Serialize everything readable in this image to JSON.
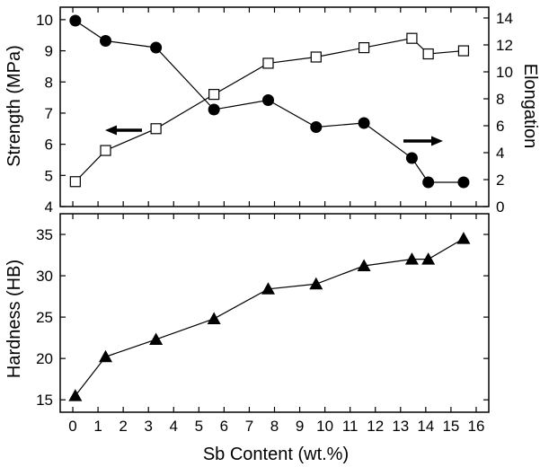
{
  "chart_data": [
    {
      "type": "line",
      "panel": "top",
      "x": [
        0.1,
        1.3,
        3.3,
        5.6,
        7.75,
        9.65,
        11.55,
        13.45,
        14.1,
        15.5
      ],
      "xlim": [
        -0.5,
        16.5
      ],
      "xticks": [
        0,
        1,
        2,
        3,
        4,
        5,
        6,
        7,
        8,
        9,
        10,
        11,
        12,
        13,
        14,
        15,
        16
      ],
      "ylabel": "Strength (MPa)",
      "ylim": [
        4,
        10.4
      ],
      "yticks": [
        4,
        5,
        6,
        7,
        8,
        9,
        10
      ],
      "y2label": "Elongation",
      "y2lim": [
        0,
        14.8
      ],
      "y2ticks": [
        0,
        2,
        4,
        6,
        8,
        10,
        12,
        14
      ],
      "series": [
        {
          "axis": "left",
          "marker": "open-square",
          "values": [
            4.8,
            5.8,
            6.5,
            7.6,
            8.6,
            8.8,
            9.1,
            9.4,
            8.9,
            9.0
          ]
        },
        {
          "axis": "right",
          "marker": "filled-circle",
          "values": [
            13.8,
            12.3,
            11.8,
            7.2,
            7.9,
            5.9,
            6.2,
            3.6,
            1.8,
            1.8
          ]
        }
      ],
      "annotations": [
        {
          "type": "arrow",
          "direction": "left",
          "refers_to": "left axis"
        },
        {
          "type": "arrow",
          "direction": "right",
          "refers_to": "right axis"
        }
      ],
      "grid": false
    },
    {
      "type": "line",
      "panel": "bottom",
      "x": [
        0.1,
        1.3,
        3.3,
        5.6,
        7.75,
        9.65,
        11.55,
        13.45,
        14.1,
        15.5
      ],
      "xlabel": "Sb Content (wt.%)",
      "xlim": [
        -0.5,
        16.5
      ],
      "xticks": [
        0,
        1,
        2,
        3,
        4,
        5,
        6,
        7,
        8,
        9,
        10,
        11,
        12,
        13,
        14,
        15,
        16
      ],
      "ylabel": "Hardness (HB)",
      "ylim": [
        13.5,
        37.5
      ],
      "yticks": [
        15,
        20,
        25,
        30,
        35
      ],
      "series": [
        {
          "marker": "filled-triangle",
          "values": [
            15.5,
            20.2,
            22.3,
            24.8,
            28.4,
            29.0,
            31.2,
            32.0,
            32.0,
            34.5
          ]
        }
      ],
      "grid": false
    }
  ]
}
